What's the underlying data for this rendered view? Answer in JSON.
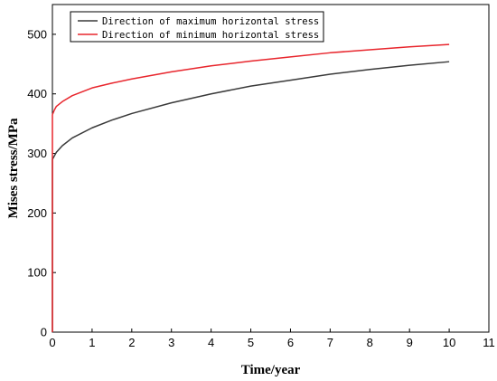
{
  "chart_data": {
    "type": "line",
    "title": "",
    "xlabel": "Time/year",
    "ylabel": "Mises stress/MPa",
    "xlim": [
      0,
      11
    ],
    "ylim": [
      0,
      550
    ],
    "xticks": [
      0,
      1,
      2,
      3,
      4,
      5,
      6,
      7,
      8,
      9,
      10,
      11
    ],
    "yticks": [
      0,
      100,
      200,
      300,
      400,
      500
    ],
    "grid": false,
    "legend": "top-left",
    "series": [
      {
        "name": "Direction of maximum horizontal stress",
        "color": "#3a3a3a",
        "x": [
          0,
          0,
          0.05,
          0.1,
          0.25,
          0.5,
          1,
          1.5,
          2,
          3,
          4,
          5,
          6,
          7,
          8,
          9,
          10
        ],
        "y": [
          0,
          290,
          296,
          302,
          313,
          326,
          343,
          356,
          367,
          385,
          400,
          413,
          423,
          433,
          441,
          448,
          454
        ]
      },
      {
        "name": "Direction of minimum horizontal stress",
        "color": "#e8262d",
        "x": [
          0,
          0,
          0.05,
          0.1,
          0.25,
          0.5,
          1,
          1.5,
          2,
          3,
          4,
          5,
          6,
          7,
          8,
          9,
          10
        ],
        "y": [
          0,
          365,
          373,
          379,
          387,
          397,
          410,
          418,
          425,
          437,
          447,
          455,
          462,
          469,
          474,
          479,
          483
        ]
      }
    ]
  }
}
